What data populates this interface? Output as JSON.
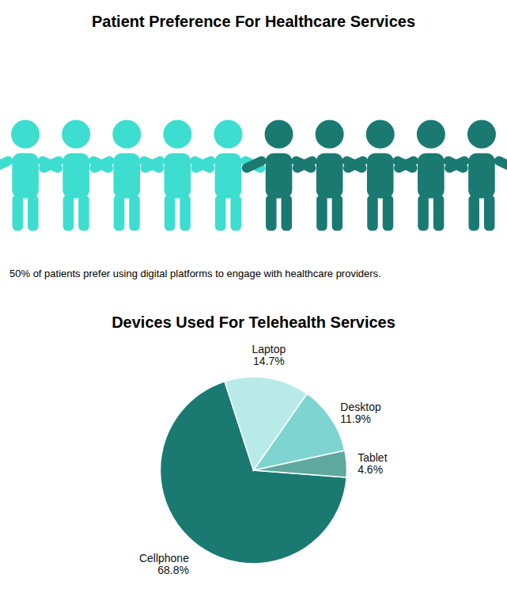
{
  "chart_data": [
    {
      "type": "pictograph",
      "title": "Patient Preference For Healthcare Services",
      "values": [
        5,
        5
      ],
      "colors": [
        "#3DDDD0",
        "#1A7A72"
      ],
      "annotations": [
        "50% of patients prefer using digital platforms to engage with healthcare providers."
      ]
    },
    {
      "type": "pie",
      "title": "Devices Used For Telehealth Services",
      "categories": [
        "Cellphone",
        "Tablet",
        "Desktop",
        "Laptop"
      ],
      "values": [
        68.8,
        4.6,
        11.9,
        14.7
      ],
      "value_labels": [
        "68.8%",
        "4.6%",
        "11.9%",
        "14.7%"
      ],
      "colors": [
        "#1A7A72",
        "#5FA89E",
        "#7DD4D0",
        "#B8EAE8"
      ],
      "data_labels": true
    }
  ]
}
